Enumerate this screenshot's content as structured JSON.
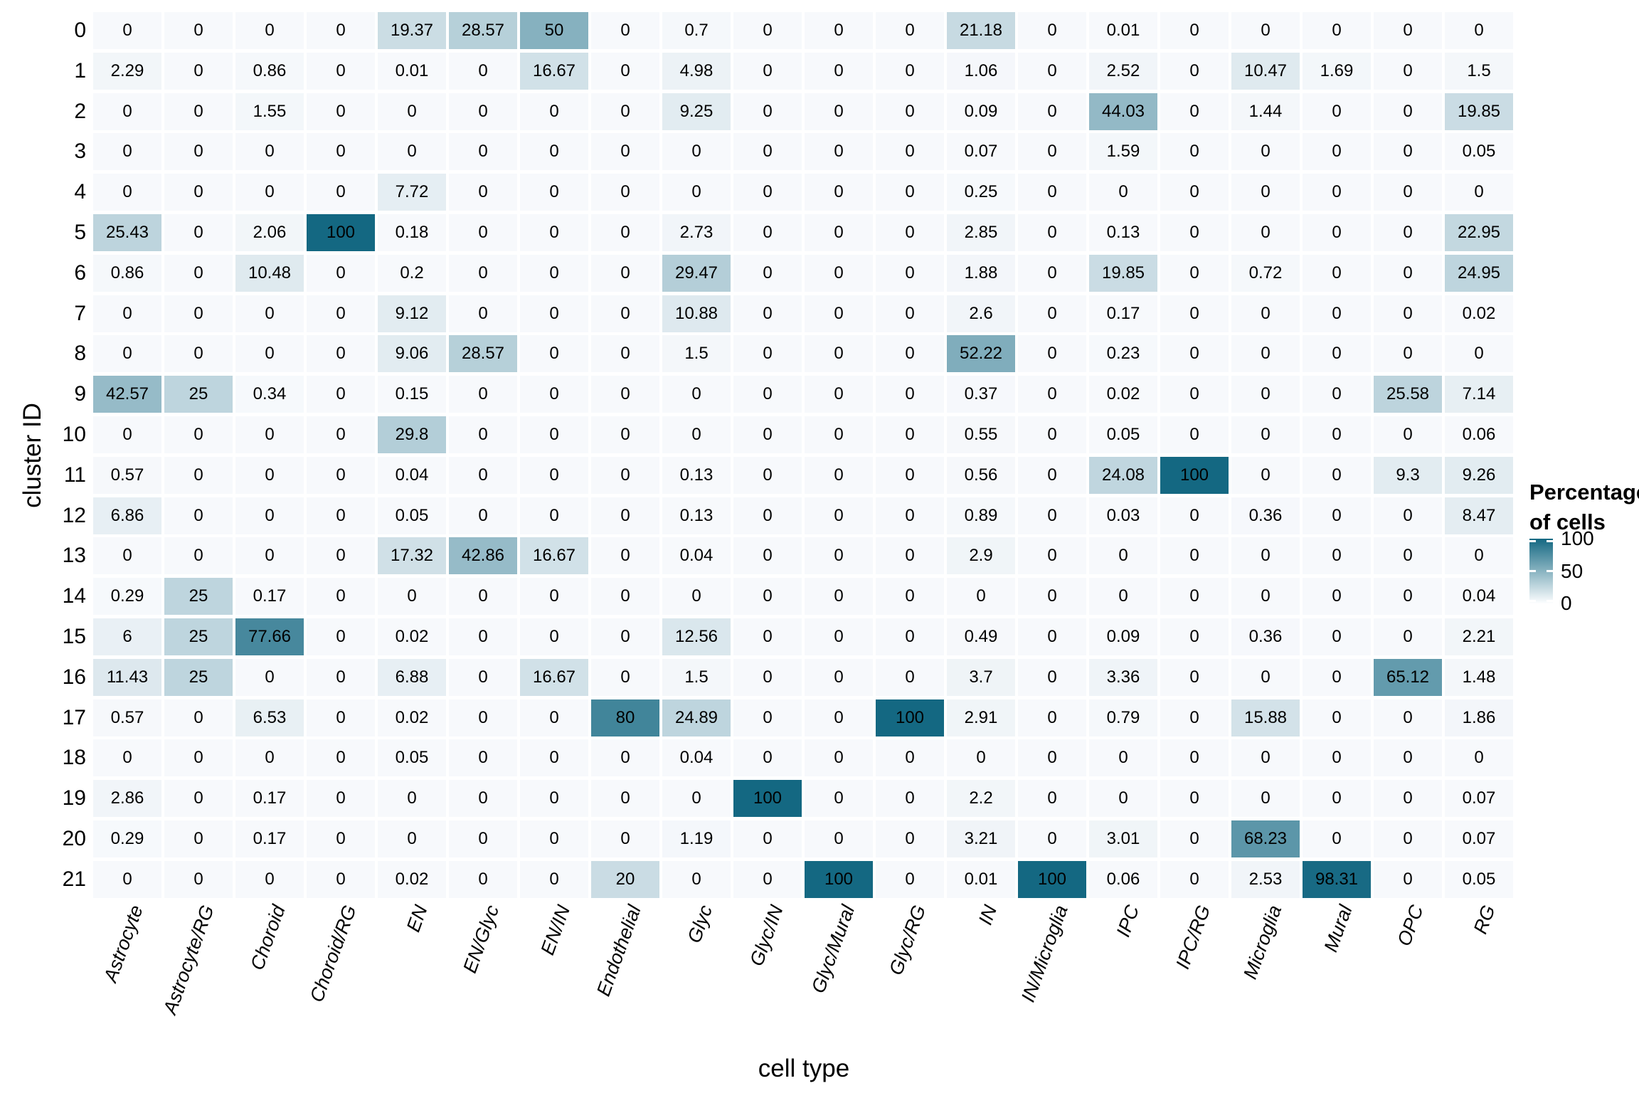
{
  "chart_data": {
    "type": "heatmap",
    "title": "",
    "xlabel": "cell type",
    "ylabel": "cluster ID",
    "value_range": [
      0,
      100
    ],
    "grid": false,
    "legend_position": "right",
    "colors": {
      "low": "#f7f9fc",
      "high": "#146882",
      "cell_text": "#000000",
      "background": "#ffffff"
    },
    "legend": {
      "title": "Percentage of cells",
      "title_line1": "Percentage",
      "title_line2": "of cells",
      "ticks": [
        100,
        50,
        0
      ]
    },
    "columns": [
      "Astrocyte",
      "Astrocyte/RG",
      "Choroid",
      "Choroid/RG",
      "EN",
      "EN/Glyc",
      "EN/IN",
      "Endothelial",
      "Glyc",
      "Glyc/IN",
      "Glyc/Mural",
      "Glyc/RG",
      "IN",
      "IN/Microglia",
      "IPC",
      "IPC/RG",
      "Microglia",
      "Mural",
      "OPC",
      "RG"
    ],
    "rows": [
      "0",
      "1",
      "2",
      "3",
      "4",
      "5",
      "6",
      "7",
      "8",
      "9",
      "10",
      "11",
      "12",
      "13",
      "14",
      "15",
      "16",
      "17",
      "18",
      "19",
      "20",
      "21"
    ],
    "values": [
      [
        0,
        0,
        0,
        0,
        19.37,
        28.57,
        50,
        0,
        0.7,
        0,
        0,
        0,
        21.18,
        0,
        0.01,
        0,
        0,
        0,
        0,
        0
      ],
      [
        2.29,
        0,
        0.86,
        0,
        0.01,
        0,
        16.67,
        0,
        4.98,
        0,
        0,
        0,
        1.06,
        0,
        2.52,
        0,
        10.47,
        1.69,
        0,
        1.5
      ],
      [
        0,
        0,
        1.55,
        0,
        0,
        0,
        0,
        0,
        9.25,
        0,
        0,
        0,
        0.09,
        0,
        44.03,
        0,
        1.44,
        0,
        0,
        19.85
      ],
      [
        0,
        0,
        0,
        0,
        0,
        0,
        0,
        0,
        0,
        0,
        0,
        0,
        0.07,
        0,
        1.59,
        0,
        0,
        0,
        0,
        0.05
      ],
      [
        0,
        0,
        0,
        0,
        7.72,
        0,
        0,
        0,
        0,
        0,
        0,
        0,
        0.25,
        0,
        0,
        0,
        0,
        0,
        0,
        0
      ],
      [
        25.43,
        0,
        2.06,
        100,
        0.18,
        0,
        0,
        0,
        2.73,
        0,
        0,
        0,
        2.85,
        0,
        0.13,
        0,
        0,
        0,
        0,
        22.95
      ],
      [
        0.86,
        0,
        10.48,
        0,
        0.2,
        0,
        0,
        0,
        29.47,
        0,
        0,
        0,
        1.88,
        0,
        19.85,
        0,
        0.72,
        0,
        0,
        24.95
      ],
      [
        0,
        0,
        0,
        0,
        9.12,
        0,
        0,
        0,
        10.88,
        0,
        0,
        0,
        2.6,
        0,
        0.17,
        0,
        0,
        0,
        0,
        0.02
      ],
      [
        0,
        0,
        0,
        0,
        9.06,
        28.57,
        0,
        0,
        1.5,
        0,
        0,
        0,
        52.22,
        0,
        0.23,
        0,
        0,
        0,
        0,
        0
      ],
      [
        42.57,
        25,
        0.34,
        0,
        0.15,
        0,
        0,
        0,
        0,
        0,
        0,
        0,
        0.37,
        0,
        0.02,
        0,
        0,
        0,
        25.58,
        7.14
      ],
      [
        0,
        0,
        0,
        0,
        29.8,
        0,
        0,
        0,
        0,
        0,
        0,
        0,
        0.55,
        0,
        0.05,
        0,
        0,
        0,
        0,
        0.06
      ],
      [
        0.57,
        0,
        0,
        0,
        0.04,
        0,
        0,
        0,
        0.13,
        0,
        0,
        0,
        0.56,
        0,
        24.08,
        100,
        0,
        0,
        9.3,
        9.26
      ],
      [
        6.86,
        0,
        0,
        0,
        0.05,
        0,
        0,
        0,
        0.13,
        0,
        0,
        0,
        0.89,
        0,
        0.03,
        0,
        0.36,
        0,
        0,
        8.47
      ],
      [
        0,
        0,
        0,
        0,
        17.32,
        42.86,
        16.67,
        0,
        0.04,
        0,
        0,
        0,
        2.9,
        0,
        0,
        0,
        0,
        0,
        0,
        0
      ],
      [
        0.29,
        25,
        0.17,
        0,
        0,
        0,
        0,
        0,
        0,
        0,
        0,
        0,
        0,
        0,
        0,
        0,
        0,
        0,
        0,
        0.04
      ],
      [
        6,
        25,
        77.66,
        0,
        0.02,
        0,
        0,
        0,
        12.56,
        0,
        0,
        0,
        0.49,
        0,
        0.09,
        0,
        0.36,
        0,
        0,
        2.21
      ],
      [
        11.43,
        25,
        0,
        0,
        6.88,
        0,
        16.67,
        0,
        1.5,
        0,
        0,
        0,
        3.7,
        0,
        3.36,
        0,
        0,
        0,
        65.12,
        1.48
      ],
      [
        0.57,
        0,
        6.53,
        0,
        0.02,
        0,
        0,
        80,
        24.89,
        0,
        0,
        100,
        2.91,
        0,
        0.79,
        0,
        15.88,
        0,
        0,
        1.86
      ],
      [
        0,
        0,
        0,
        0,
        0.05,
        0,
        0,
        0,
        0.04,
        0,
        0,
        0,
        0,
        0,
        0,
        0,
        0,
        0,
        0,
        0
      ],
      [
        2.86,
        0,
        0.17,
        0,
        0,
        0,
        0,
        0,
        0,
        100,
        0,
        0,
        2.2,
        0,
        0,
        0,
        0,
        0,
        0,
        0.07
      ],
      [
        0.29,
        0,
        0.17,
        0,
        0,
        0,
        0,
        0,
        1.19,
        0,
        0,
        0,
        3.21,
        0,
        3.01,
        0,
        68.23,
        0,
        0,
        0.07
      ],
      [
        0,
        0,
        0,
        0,
        0.02,
        0,
        0,
        20,
        0,
        0,
        100,
        0,
        0.01,
        100,
        0.06,
        0,
        2.53,
        98.31,
        0,
        0.05
      ]
    ]
  }
}
